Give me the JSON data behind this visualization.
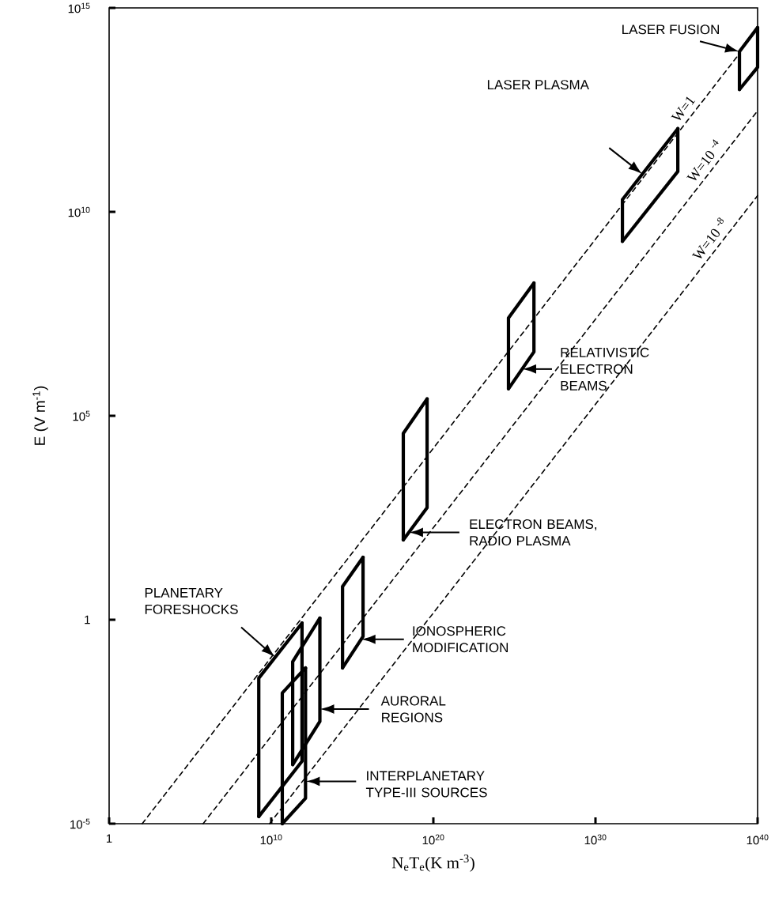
{
  "chart_data": {
    "type": "line",
    "xlabel": "N$_{e}$T$_{e}$(K m$^{-3}$)",
    "ylabel": "E (V m$^{-1}$)",
    "log": "xy",
    "xlim": [
      1,
      1e+40
    ],
    "ylim": [
      1e-05,
      1000000000000000.0
    ],
    "xticks": [
      1,
      {
        "value": 10000000000.0,
        "label": "10$^{10}$"
      },
      {
        "value": 1e+20,
        "label": "10$^{20}$"
      },
      {
        "value": 1e+30,
        "label": "10$^{30}$"
      },
      {
        "value": 1e+40,
        "label": "10$^{40}$"
      }
    ],
    "yticks": [
      {
        "value": 1e-05,
        "label": "10$^{-5}$"
      },
      1,
      {
        "value": 100000.0,
        "label": "10$^{5}$"
      },
      {
        "value": 10000000000.0,
        "label": "10$^{10}$"
      },
      {
        "value": 1000000000000000.0,
        "label": "10$^{15}$"
      }
    ],
    "series": [
      {
        "color": "#000000",
        "line_style": "dashed",
        "name": "W=1",
        "x": [
          110,
          7.6e+38
        ],
        "values": [
          1e-05,
          76000000000000.0
        ]
      },
      {
        "color": "#000000",
        "line_style": "dashed",
        "name": "W=10 $^{-4}$",
        "x": [
          630000.0,
          1e+40
        ],
        "values": [
          1e-05,
          3000000000000.0
        ]
      },
      {
        "color": "#000000",
        "line_style": "dashed",
        "name": "W=10 $^{-8}$",
        "x": [
          7900000000.0,
          1e+40
        ],
        "values": [
          1e-05,
          25000000000.0
        ]
      },
      {
        "color": "#000000",
        "line_style": "solid",
        "x": [
          1700000000.0,
          1700000000.0,
          790000000000.0
        ],
        "values": [
          1.5e-05,
          0.037,
          0.83
        ]
      },
      {
        "color": "#000000",
        "line_style": "solid",
        "x": [
          1700000000.0,
          790000000000.0,
          790000000000.0
        ],
        "values": [
          1.5e-05,
          0.00034,
          0.83
        ]
      },
      {
        "color": "#000000",
        "line_style": "solid",
        "x": [
          210000000000.0,
          210000000000.0,
          10000000000000.0
        ],
        "values": [
          0.00028,
          0.093,
          1.1
        ]
      },
      {
        "color": "#000000",
        "line_style": "solid",
        "x": [
          210000000000.0,
          10000000000000.0,
          10000000000000.0
        ],
        "values": [
          0.00028,
          0.0032,
          1.1
        ]
      },
      {
        "color": "#000000",
        "line_style": "solid",
        "x": [
          48000000000.0,
          48000000000.0,
          1300000000000.0
        ],
        "values": [
          1e-05,
          0.016,
          0.066
        ]
      },
      {
        "color": "#000000",
        "line_style": "solid",
        "x": [
          48000000000.0,
          1300000000000.0,
          1300000000000.0
        ],
        "values": [
          1e-05,
          4.2e-05,
          0.066
        ]
      },
      {
        "color": "#000000",
        "line_style": "solid",
        "x": [
          250000000000000.0,
          250000000000000.0,
          4600000000000000.0
        ],
        "values": [
          0.066,
          6.5,
          34
        ]
      },
      {
        "color": "#000000",
        "line_style": "solid",
        "x": [
          250000000000000.0,
          4600000000000000.0,
          4600000000000000.0
        ],
        "values": [
          0.066,
          0.39,
          34
        ]
      },
      {
        "color": "#000000",
        "line_style": "solid",
        "x": [
          1.4e+18,
          1.4e+18,
          4.1e+19
        ],
        "values": [
          91,
          37000.0,
          260000.0
        ]
      },
      {
        "color": "#000000",
        "line_style": "solid",
        "x": [
          1.4e+18,
          4.1e+19,
          4.1e+19
        ],
        "values": [
          91,
          560,
          260000.0
        ]
      },
      {
        "color": "#000000",
        "line_style": "solid",
        "x": [
          4.3e+24,
          4.3e+24,
          1.6e+26
        ],
        "values": [
          460000.0,
          25000000.0,
          180000000.0
        ]
      },
      {
        "color": "#000000",
        "line_style": "solid",
        "x": [
          4.3e+24,
          1.6e+26,
          1.6e+26
        ],
        "values": [
          460000.0,
          3700000.0,
          180000000.0
        ]
      },
      {
        "color": "#000000",
        "line_style": "solid",
        "x": [
          4.6e+31,
          4.6e+31,
          1.2e+35
        ],
        "values": [
          1900000000.0,
          20000000000.0,
          1100000000000.0
        ]
      },
      {
        "color": "#000000",
        "line_style": "solid",
        "x": [
          4.6e+31,
          1.2e+35,
          1.2e+35
        ],
        "values": [
          1900000000.0,
          98000000000.0,
          1100000000000.0
        ]
      },
      {
        "color": "#000000",
        "line_style": "solid",
        "x": [
          7.6e+38,
          7.6e+38,
          1e+40
        ],
        "values": [
          10000000000000.0,
          85000000000000.0,
          330000000000000.0
        ]
      },
      {
        "color": "#000000",
        "line_style": "solid",
        "x": [
          7.6e+38,
          1e+40,
          1e+40
        ],
        "values": [
          10000000000000.0,
          35000000000000.0,
          330000000000000.0
        ]
      }
    ],
    "annotations": [
      {
        "text": "LASER FUSION",
        "x": 7.6e+38,
        "y": 85000000000000.0
      },
      "LASER PLASMA",
      {
        "text": "RELATIVISTIC ELECTRON BEAMS",
        "x": 2.9e+25,
        "y": 1400000.0
      },
      "ELECTRON BEAMS, RADIO PLASMA",
      "IONOSPHERIC MODIFICATION",
      "AURORAL REGIONS",
      "INTERPLANETARY TYPE-III SOURCES",
      "PLANETARY FORESHOCKS"
    ]
  }
}
